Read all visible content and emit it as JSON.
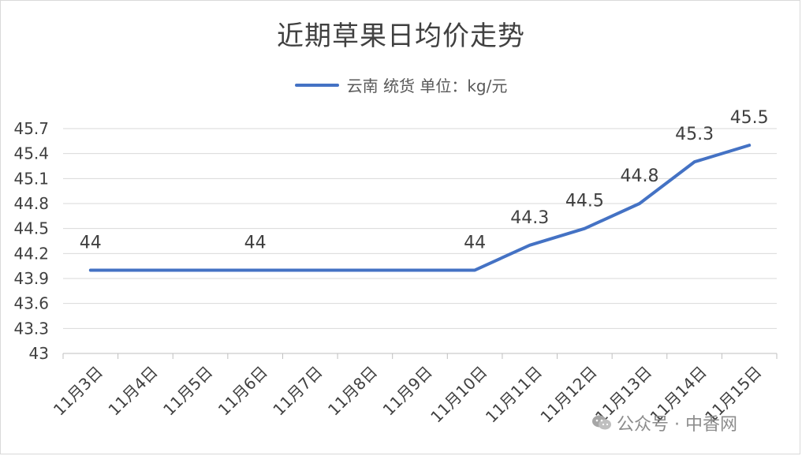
{
  "chart_data": {
    "type": "line",
    "title": "近期草果日均价走势",
    "categories": [
      "11月3日",
      "11月4日",
      "11月5日",
      "11月6日",
      "11月7日",
      "11月8日",
      "11月9日",
      "11月10日",
      "11月11日",
      "11月12日",
      "11月13日",
      "11月14日",
      "11月15日"
    ],
    "series": [
      {
        "name": "云南 统货 单位：kg/元",
        "values": [
          44,
          44,
          44,
          44,
          44,
          44,
          44,
          44,
          44.3,
          44.5,
          44.8,
          45.3,
          45.5
        ],
        "data_labels": {
          "0": "44",
          "3": "44",
          "7": "44",
          "8": "44.3",
          "9": "44.5",
          "10": "44.8",
          "11": "45.3",
          "12": "45.5"
        }
      }
    ],
    "yticks": [
      "43",
      "43.3",
      "43.6",
      "43.9",
      "44.2",
      "44.5",
      "44.8",
      "45.1",
      "45.4",
      "45.7"
    ],
    "ylim": [
      43,
      45.7
    ],
    "grid": true,
    "legend_position": "top-center",
    "line_color": "#4472c4"
  },
  "watermark": {
    "text": "公众号 · 中香网",
    "icon": "wechat-icon"
  }
}
